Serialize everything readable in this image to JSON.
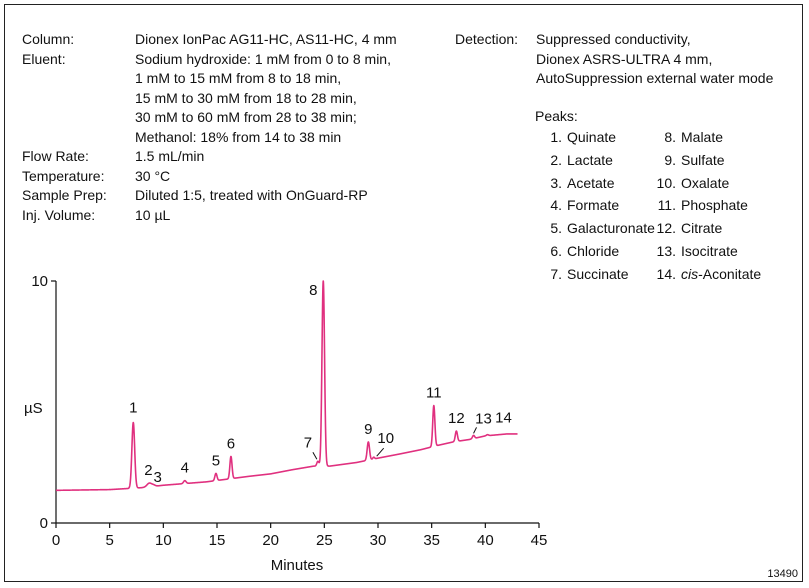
{
  "conditions": [
    {
      "label": "Column:",
      "lines": [
        "Dionex IonPac AG11-HC, AS11-HC, 4 mm"
      ]
    },
    {
      "label": "Eluent:",
      "lines": [
        "Sodium hydroxide: 1 mM from 0 to 8 min,",
        "1 mM to 15 mM from 8 to 18 min,",
        "15 mM to 30 mM from 18 to 28 min,",
        "30 mM to 60 mM from 28 to 38 min;",
        "Methanol: 18% from 14 to 38 min"
      ]
    },
    {
      "label": "Flow Rate:",
      "lines": [
        "1.5 mL/min"
      ]
    },
    {
      "label": "Temperature:",
      "lines": [
        "30 °C"
      ]
    },
    {
      "label": "Sample Prep:",
      "lines": [
        "Diluted 1:5, treated with OnGuard-RP"
      ]
    },
    {
      "label": "Inj. Volume:",
      "lines": [
        "10 µL"
      ]
    }
  ],
  "detection": {
    "label": "Detection:",
    "lines": [
      "Suppressed conductivity,",
      "Dionex ASRS-ULTRA 4 mm,",
      "AutoSuppression external water mode"
    ]
  },
  "peaks_title": "Peaks:",
  "peaks": [
    {
      "num": "1.",
      "name": "Quinate"
    },
    {
      "num": "2.",
      "name": "Lactate"
    },
    {
      "num": "3.",
      "name": "Acetate"
    },
    {
      "num": "4.",
      "name": "Formate"
    },
    {
      "num": "5.",
      "name": "Galacturonate"
    },
    {
      "num": "6.",
      "name": "Chloride"
    },
    {
      "num": "7.",
      "name": "Succinate"
    },
    {
      "num": "8.",
      "name": "Malate"
    },
    {
      "num": "9.",
      "name": "Sulfate"
    },
    {
      "num": "10.",
      "name": "Oxalate"
    },
    {
      "num": "11.",
      "name": "Phosphate"
    },
    {
      "num": "12.",
      "name": "Citrate"
    },
    {
      "num": "13.",
      "name": "Isocitrate"
    },
    {
      "num": "14.",
      "name_italic": "cis",
      "name": "-Aconitate"
    }
  ],
  "figure_id": "13490",
  "chart_data": {
    "type": "line",
    "xlabel": "Minutes",
    "ylabel": "µS",
    "xlim": [
      0,
      45
    ],
    "ylim": [
      0,
      10
    ],
    "xticks": [
      0,
      5,
      10,
      15,
      20,
      25,
      30,
      35,
      40,
      45
    ],
    "yticks": [
      0,
      10
    ],
    "color": "#e0307f",
    "baseline": [
      [
        0,
        1.35
      ],
      [
        5,
        1.38
      ],
      [
        8,
        1.46
      ],
      [
        10,
        1.56
      ],
      [
        14,
        1.7
      ],
      [
        18,
        1.93
      ],
      [
        20,
        2.03
      ],
      [
        22,
        2.2
      ],
      [
        24,
        2.35
      ],
      [
        25.5,
        2.35
      ],
      [
        28,
        2.5
      ],
      [
        30,
        2.68
      ],
      [
        32,
        2.85
      ],
      [
        34,
        3.03
      ],
      [
        35.5,
        3.2
      ],
      [
        37,
        3.35
      ],
      [
        38.5,
        3.45
      ],
      [
        40,
        3.6
      ],
      [
        42,
        3.68
      ],
      [
        43,
        3.68
      ]
    ],
    "peaks": [
      {
        "label": "1",
        "x": 7.2,
        "y": 4.15,
        "w": 0.13
      },
      {
        "label": "2",
        "x": 8.7,
        "y": 1.65,
        "w": 0.22
      },
      {
        "label": "3",
        "x": 9.1,
        "y": 1.56,
        "w": 0.15
      },
      {
        "label": "4",
        "x": 12.0,
        "y": 1.75,
        "w": 0.12
      },
      {
        "label": "5",
        "x": 14.9,
        "y": 2.05,
        "w": 0.1
      },
      {
        "label": "6",
        "x": 16.3,
        "y": 2.75,
        "w": 0.1
      },
      {
        "label": "7",
        "x": 24.4,
        "y": 2.55,
        "w": 0.1
      },
      {
        "label": "8",
        "x": 24.9,
        "y": 10.0,
        "w": 0.12
      },
      {
        "label": "9",
        "x": 29.1,
        "y": 3.35,
        "w": 0.11
      },
      {
        "label": "10",
        "x": 29.6,
        "y": 2.72,
        "w": 0.08
      },
      {
        "label": "11",
        "x": 35.2,
        "y": 4.85,
        "w": 0.1
      },
      {
        "label": "12",
        "x": 37.3,
        "y": 3.8,
        "w": 0.1
      },
      {
        "label": "13",
        "x": 38.9,
        "y": 3.62,
        "w": 0.1
      },
      {
        "label": "14",
        "x": 40.2,
        "y": 3.65,
        "w": 0.1
      }
    ]
  }
}
